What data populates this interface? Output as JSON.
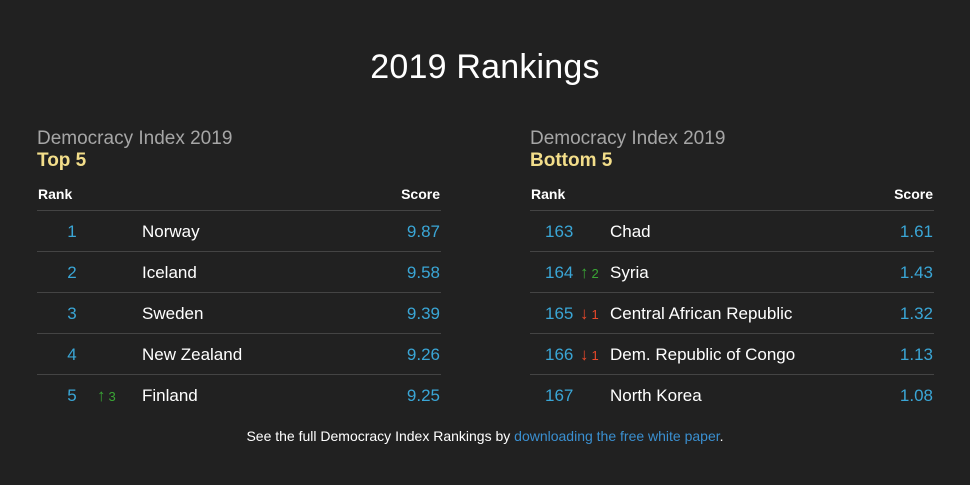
{
  "title": "2019 Rankings",
  "panels": [
    {
      "title": "Democracy Index 2019",
      "subtitle": "Top 5",
      "rank_header": "Rank",
      "score_header": "Score",
      "rows": [
        {
          "rank": "1",
          "change": "",
          "country": "Norway",
          "score": "9.87"
        },
        {
          "rank": "2",
          "change": "",
          "country": "Iceland",
          "score": "9.58"
        },
        {
          "rank": "3",
          "change": "",
          "country": "Sweden",
          "score": "9.39"
        },
        {
          "rank": "4",
          "change": "",
          "country": "New Zealand",
          "score": "9.26"
        },
        {
          "rank": "5",
          "change": "3",
          "direction": "up",
          "country": "Finland",
          "score": "9.25"
        }
      ]
    },
    {
      "title": "Democracy Index 2019",
      "subtitle": "Bottom 5",
      "rank_header": "Rank",
      "score_header": "Score",
      "rows": [
        {
          "rank": "163",
          "change": "",
          "country": "Chad",
          "score": "1.61"
        },
        {
          "rank": "164",
          "change": "2",
          "direction": "up",
          "country": "Syria",
          "score": "1.43"
        },
        {
          "rank": "165",
          "change": "1",
          "direction": "down",
          "country": "Central African Republic",
          "score": "1.32"
        },
        {
          "rank": "166",
          "change": "1",
          "direction": "down",
          "country": "Dem. Republic of Congo",
          "score": "1.13"
        },
        {
          "rank": "167",
          "change": "",
          "country": "North Korea",
          "score": "1.08"
        }
      ]
    }
  ],
  "footer": {
    "text_before": "See the full Democracy Index Rankings by ",
    "link": "downloading the free white paper",
    "text_after": "."
  },
  "colors": {
    "background": "#212121",
    "accent": "#3aa6d6",
    "subtitle": "#f3de8a",
    "up": "#3aa635",
    "down": "#e8482a"
  },
  "icons": {
    "up": "arrow-up-icon",
    "down": "arrow-down-icon"
  }
}
